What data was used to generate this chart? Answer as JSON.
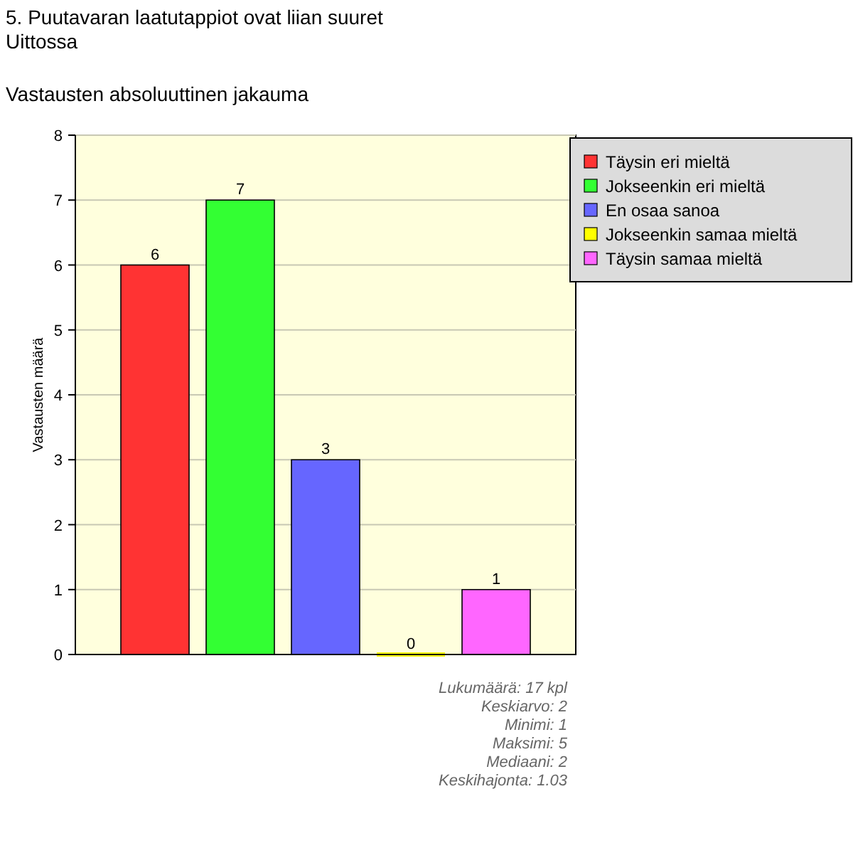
{
  "chart_data": {
    "type": "bar",
    "title": "5. Puutavaran laatutappiot ovat liian suuret",
    "subtitle": "Uittossa",
    "ylabel": "Vastausten määrä",
    "categories": [
      null
    ],
    "series": [
      {
        "name": "Täysin eri mieltä",
        "color": "#ff3333",
        "values": [
          6
        ]
      },
      {
        "name": "Jokseenkin eri mieltä",
        "color": "#33ff33",
        "values": [
          7
        ]
      },
      {
        "name": "En osaa sanoa",
        "color": "#6666ff",
        "values": [
          3
        ]
      },
      {
        "name": "Jokseenkin samaa mieltä",
        "color": "#ffff00",
        "values": [
          0
        ]
      },
      {
        "name": "Täysin samaa mieltä",
        "color": "#ff66ff",
        "values": [
          1
        ]
      }
    ],
    "ylim": [
      0,
      8
    ],
    "yticks": [
      0,
      1,
      2,
      3,
      4,
      5,
      6,
      7,
      8
    ],
    "grid": "y",
    "legend": "top right",
    "data_labels": true,
    "annotations": [
      "Vastausten absoluuttinen jakauma",
      "Lukumäärä: 17 kpl",
      "Keskiarvo: 2",
      "Minimi: 1",
      "Maksimi: 5",
      "Mediaani: 2",
      "Keskihajonta: 1.03"
    ]
  }
}
